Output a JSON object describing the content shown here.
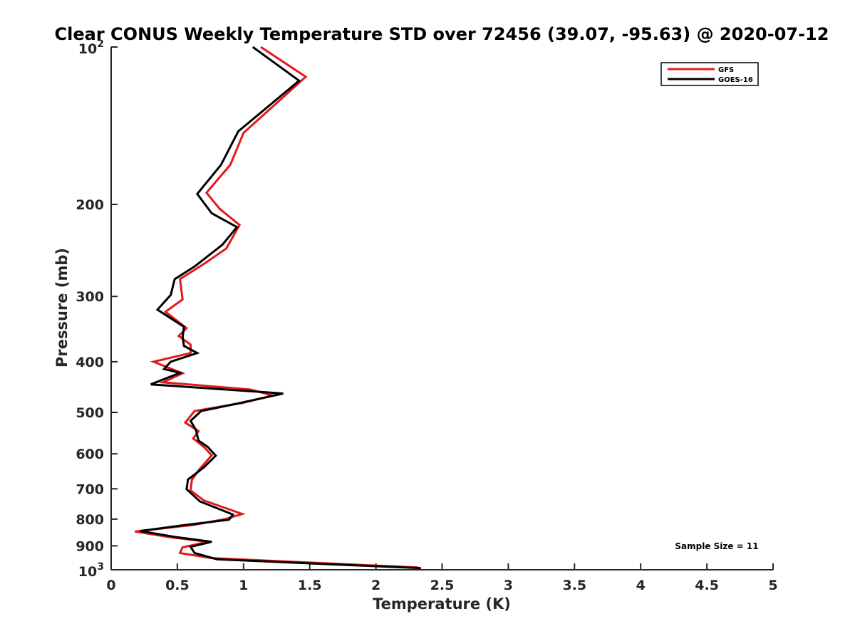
{
  "chart_data": {
    "type": "line",
    "title": "Clear CONUS Weekly Temperature STD over 72456 (39.07, -95.63) @ 2020-07-12",
    "xlabel": "Temperature (K)",
    "ylabel": "Pressure (mb)",
    "xlim": [
      0,
      5
    ],
    "ylim": [
      100,
      1000
    ],
    "y_scale": "log",
    "y_reversed": true,
    "grid": false,
    "legend_position": "top-right",
    "x_tick_labels": [
      "0",
      "0.5",
      "1",
      "1.5",
      "2",
      "2.5",
      "3",
      "3.5",
      "4",
      "4.5",
      "5"
    ],
    "y_tick_labels": [
      {
        "value": 100,
        "base": "10",
        "exp": "2"
      },
      {
        "value": 200,
        "label": "200"
      },
      {
        "value": 300,
        "label": "300"
      },
      {
        "value": 400,
        "label": "400"
      },
      {
        "value": 500,
        "label": "500"
      },
      {
        "value": 600,
        "label": "600"
      },
      {
        "value": 700,
        "label": "700"
      },
      {
        "value": 800,
        "label": "800"
      },
      {
        "value": 900,
        "label": "900"
      },
      {
        "value": 1000,
        "base": "10",
        "exp": "3"
      }
    ],
    "annotation": "Sample Size = 11",
    "series": [
      {
        "name": "GFS",
        "color": "#e31a1c",
        "points": [
          [
            1.13,
            100
          ],
          [
            1.47,
            114
          ],
          [
            1.0,
            146
          ],
          [
            0.9,
            168
          ],
          [
            0.72,
            190
          ],
          [
            0.82,
            204
          ],
          [
            0.97,
            219
          ],
          [
            0.87,
            243
          ],
          [
            0.7,
            260
          ],
          [
            0.52,
            278
          ],
          [
            0.54,
            304
          ],
          [
            0.41,
            321
          ],
          [
            0.57,
            345
          ],
          [
            0.51,
            357
          ],
          [
            0.6,
            371
          ],
          [
            0.6,
            385
          ],
          [
            0.32,
            400
          ],
          [
            0.54,
            421
          ],
          [
            0.39,
            438
          ],
          [
            1.05,
            452
          ],
          [
            1.22,
            464
          ],
          [
            1.0,
            479
          ],
          [
            0.63,
            497
          ],
          [
            0.56,
            523
          ],
          [
            0.66,
            543
          ],
          [
            0.62,
            561
          ],
          [
            0.7,
            582
          ],
          [
            0.76,
            604
          ],
          [
            0.67,
            641
          ],
          [
            0.61,
            673
          ],
          [
            0.6,
            705
          ],
          [
            0.7,
            737
          ],
          [
            0.99,
            782
          ],
          [
            0.86,
            800
          ],
          [
            0.62,
            821
          ],
          [
            0.18,
            845
          ],
          [
            0.44,
            866
          ],
          [
            0.73,
            884
          ],
          [
            0.54,
            906
          ],
          [
            0.52,
            929
          ],
          [
            0.76,
            950
          ],
          [
            2.32,
            990
          ]
        ]
      },
      {
        "name": "GOES-16",
        "color": "#000000",
        "points": [
          [
            1.07,
            100
          ],
          [
            1.42,
            116
          ],
          [
            0.96,
            145
          ],
          [
            0.83,
            168
          ],
          [
            0.65,
            191
          ],
          [
            0.76,
            208
          ],
          [
            0.95,
            221
          ],
          [
            0.84,
            239
          ],
          [
            0.63,
            263
          ],
          [
            0.48,
            278
          ],
          [
            0.45,
            298
          ],
          [
            0.35,
            318
          ],
          [
            0.55,
            343
          ],
          [
            0.54,
            359
          ],
          [
            0.55,
            373
          ],
          [
            0.65,
            385
          ],
          [
            0.45,
            400
          ],
          [
            0.4,
            413
          ],
          [
            0.52,
            420
          ],
          [
            0.3,
            442
          ],
          [
            1.3,
            460
          ],
          [
            0.97,
            480
          ],
          [
            0.68,
            497
          ],
          [
            0.6,
            519
          ],
          [
            0.64,
            540
          ],
          [
            0.66,
            566
          ],
          [
            0.73,
            582
          ],
          [
            0.79,
            605
          ],
          [
            0.7,
            637
          ],
          [
            0.58,
            672
          ],
          [
            0.57,
            701
          ],
          [
            0.67,
            740
          ],
          [
            0.92,
            784
          ],
          [
            0.89,
            802
          ],
          [
            0.56,
            821
          ],
          [
            0.22,
            843
          ],
          [
            0.48,
            865
          ],
          [
            0.76,
            884
          ],
          [
            0.6,
            904
          ],
          [
            0.63,
            929
          ],
          [
            0.8,
            955
          ],
          [
            2.34,
            993
          ]
        ]
      }
    ]
  }
}
